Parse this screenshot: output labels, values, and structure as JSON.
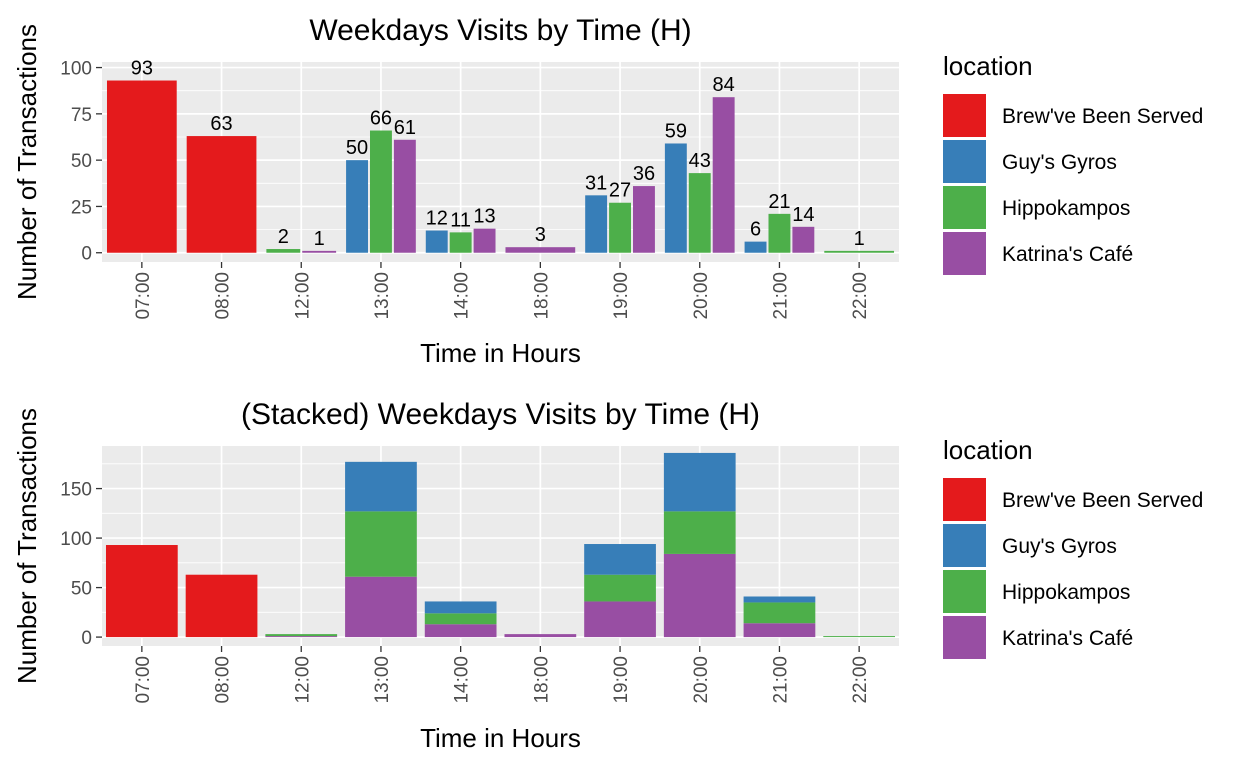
{
  "colors": {
    "Brew've Been Served": "#E41A1C",
    "Guy's Gyros": "#377EB8",
    "Hippokampos": "#4DAF4A",
    "Katrina's Café": "#984EA3",
    "panel_bg": "#EBEBEB",
    "grid_major": "#FFFFFF",
    "tick_text": "#4D4D4D"
  },
  "chart_data": [
    {
      "type": "bar",
      "title": "Weekdays Visits by Time (H)",
      "xlabel": "Time in Hours",
      "ylabel": "Number of Transactions",
      "position": "dodge",
      "categories": [
        "07:00",
        "08:00",
        "12:00",
        "13:00",
        "14:00",
        "18:00",
        "19:00",
        "20:00",
        "21:00",
        "22:00"
      ],
      "ylim": [
        -5,
        103
      ],
      "yticks": [
        0,
        25,
        50,
        75,
        100
      ],
      "grid": true,
      "data_labels": true,
      "legend": {
        "title": "location",
        "placement": "right"
      },
      "series": [
        {
          "name": "Brew've Been Served",
          "values": [
            93,
            63,
            null,
            null,
            null,
            null,
            null,
            null,
            null,
            null
          ]
        },
        {
          "name": "Guy's Gyros",
          "values": [
            null,
            null,
            null,
            50,
            12,
            null,
            31,
            59,
            6,
            null
          ]
        },
        {
          "name": "Hippokampos",
          "values": [
            null,
            null,
            2,
            66,
            11,
            null,
            27,
            43,
            21,
            1
          ]
        },
        {
          "name": "Katrina's Café",
          "values": [
            null,
            null,
            1,
            61,
            13,
            3,
            36,
            84,
            14,
            null
          ]
        }
      ]
    },
    {
      "type": "bar",
      "title": "(Stacked) Weekdays Visits by Time (H)",
      "xlabel": "Time in Hours",
      "ylabel": "Number of Transactions",
      "position": "stack",
      "categories": [
        "07:00",
        "08:00",
        "12:00",
        "13:00",
        "14:00",
        "18:00",
        "19:00",
        "20:00",
        "21:00",
        "22:00"
      ],
      "ylim": [
        -9,
        193
      ],
      "yticks": [
        0,
        50,
        100,
        150
      ],
      "grid": true,
      "data_labels": false,
      "legend": {
        "title": "location",
        "placement": "right"
      },
      "series": [
        {
          "name": "Brew've Been Served",
          "values": [
            93,
            63,
            0,
            0,
            0,
            0,
            0,
            0,
            0,
            0
          ]
        },
        {
          "name": "Guy's Gyros",
          "values": [
            0,
            0,
            0,
            50,
            12,
            0,
            31,
            59,
            6,
            0
          ]
        },
        {
          "name": "Hippokampos",
          "values": [
            0,
            0,
            2,
            66,
            11,
            0,
            27,
            43,
            21,
            1
          ]
        },
        {
          "name": "Katrina's Café",
          "values": [
            0,
            0,
            1,
            61,
            13,
            3,
            36,
            84,
            14,
            0
          ]
        }
      ]
    }
  ]
}
